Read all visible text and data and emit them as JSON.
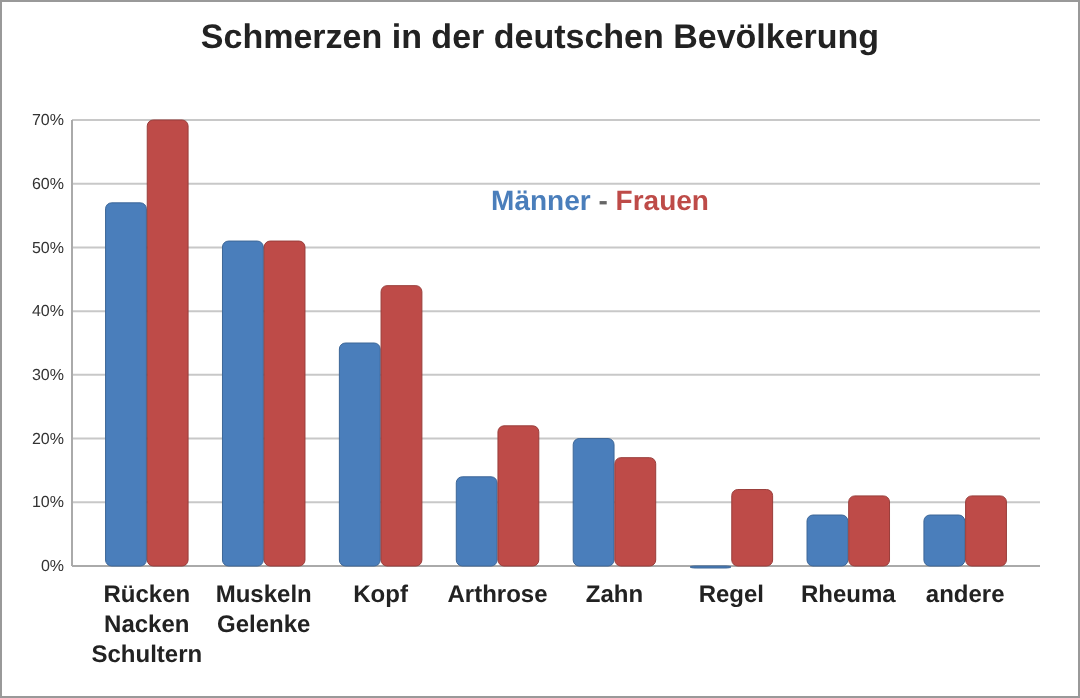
{
  "chart_data": {
    "type": "bar",
    "title": "Schmerzen in der deutschen Bevölkerung",
    "categories": [
      "Rücken\nNacken\nSchultern",
      "Muskeln\nGelenke",
      "Kopf",
      "Arthrose",
      "Zahn",
      "Regel",
      "Rheuma",
      "andere"
    ],
    "series": [
      {
        "name": "Männer",
        "color": "#4a7ebb",
        "values": [
          57,
          51,
          35,
          14,
          20,
          0,
          8,
          8
        ]
      },
      {
        "name": "Frauen",
        "color": "#be4b48",
        "values": [
          70,
          51,
          44,
          22,
          17,
          12,
          11,
          11
        ]
      }
    ],
    "ylim": [
      0,
      70
    ],
    "yticks": [
      {
        "value": 0,
        "label": "0%"
      },
      {
        "value": 10,
        "label": "10%"
      },
      {
        "value": 20,
        "label": "20%"
      },
      {
        "value": 30,
        "label": "30%"
      },
      {
        "value": 40,
        "label": "40%"
      },
      {
        "value": 50,
        "label": "50%"
      },
      {
        "value": 60,
        "label": "60%"
      },
      {
        "value": 70,
        "label": "70%"
      }
    ],
    "grid": "y",
    "legend": "top",
    "annotations": [
      "-"
    ]
  }
}
